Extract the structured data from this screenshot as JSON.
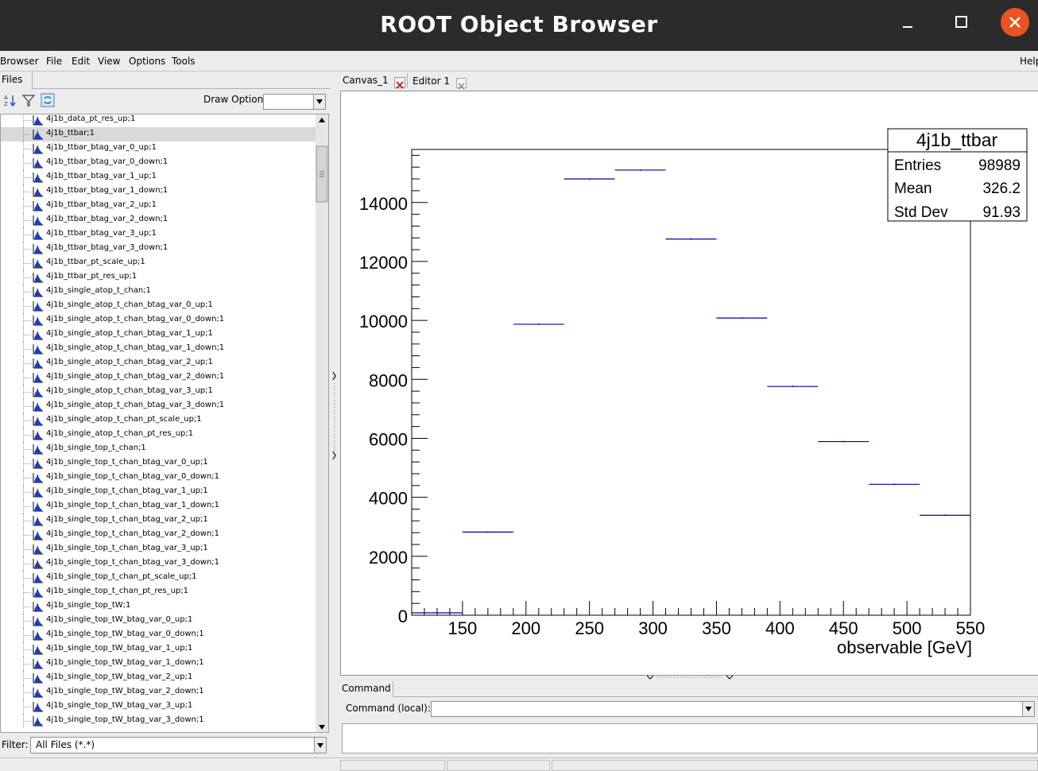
{
  "window": {
    "title": "ROOT Object Browser"
  },
  "menu": {
    "browser": "Browser",
    "file": "File",
    "edit": "Edit",
    "view": "View",
    "options": "Options",
    "tools": "Tools",
    "help": "Help"
  },
  "left": {
    "tab": "Files",
    "draw_option_label": "Draw Option:",
    "draw_option_value": "",
    "filter_label": "Filter:",
    "filter_value": "All Files (*.*)",
    "items": [
      "4j1b_data_pt_res_up;1",
      "4j1b_ttbar;1",
      "4j1b_ttbar_btag_var_0_up;1",
      "4j1b_ttbar_btag_var_0_down;1",
      "4j1b_ttbar_btag_var_1_up;1",
      "4j1b_ttbar_btag_var_1_down;1",
      "4j1b_ttbar_btag_var_2_up;1",
      "4j1b_ttbar_btag_var_2_down;1",
      "4j1b_ttbar_btag_var_3_up;1",
      "4j1b_ttbar_btag_var_3_down;1",
      "4j1b_ttbar_pt_scale_up;1",
      "4j1b_ttbar_pt_res_up;1",
      "4j1b_single_atop_t_chan;1",
      "4j1b_single_atop_t_chan_btag_var_0_up;1",
      "4j1b_single_atop_t_chan_btag_var_0_down;1",
      "4j1b_single_atop_t_chan_btag_var_1_up;1",
      "4j1b_single_atop_t_chan_btag_var_1_down;1",
      "4j1b_single_atop_t_chan_btag_var_2_up;1",
      "4j1b_single_atop_t_chan_btag_var_2_down;1",
      "4j1b_single_atop_t_chan_btag_var_3_up;1",
      "4j1b_single_atop_t_chan_btag_var_3_down;1",
      "4j1b_single_atop_t_chan_pt_scale_up;1",
      "4j1b_single_atop_t_chan_pt_res_up;1",
      "4j1b_single_top_t_chan;1",
      "4j1b_single_top_t_chan_btag_var_0_up;1",
      "4j1b_single_top_t_chan_btag_var_0_down;1",
      "4j1b_single_top_t_chan_btag_var_1_up;1",
      "4j1b_single_top_t_chan_btag_var_1_down;1",
      "4j1b_single_top_t_chan_btag_var_2_up;1",
      "4j1b_single_top_t_chan_btag_var_2_down;1",
      "4j1b_single_top_t_chan_btag_var_3_up;1",
      "4j1b_single_top_t_chan_btag_var_3_down;1",
      "4j1b_single_top_t_chan_pt_scale_up;1",
      "4j1b_single_top_t_chan_pt_res_up;1",
      "4j1b_single_top_tW;1",
      "4j1b_single_top_tW_btag_var_0_up;1",
      "4j1b_single_top_tW_btag_var_0_down;1",
      "4j1b_single_top_tW_btag_var_1_up;1",
      "4j1b_single_top_tW_btag_var_1_down;1",
      "4j1b_single_top_tW_btag_var_2_up;1",
      "4j1b_single_top_tW_btag_var_2_down;1",
      "4j1b_single_top_tW_btag_var_3_up;1",
      "4j1b_single_top_tW_btag_var_3_down;1"
    ],
    "selected_index": 1
  },
  "right": {
    "tabs": [
      "Canvas_1",
      "Editor 1"
    ],
    "command_tab": "Command",
    "command_label": "Command (local):",
    "command_value": ""
  },
  "stats": {
    "title": "4j1b_ttbar",
    "entries_label": "Entries",
    "entries": "98989",
    "mean_label": "Mean",
    "mean": "326.2",
    "std_label": "Std Dev",
    "std": "91.93"
  },
  "chart_data": {
    "type": "bar",
    "title": "",
    "xlabel": "observable [GeV]",
    "ylabel": "",
    "xlim": [
      110,
      550
    ],
    "ylim": [
      0,
      15800
    ],
    "x_ticks": [
      150,
      200,
      250,
      300,
      350,
      400,
      450,
      500,
      550
    ],
    "y_ticks": [
      0,
      2000,
      4000,
      6000,
      8000,
      10000,
      12000,
      14000
    ],
    "bin_edges": [
      110,
      150,
      190,
      230,
      270,
      310,
      350,
      390,
      430,
      470,
      510,
      550
    ],
    "values": [
      80,
      2820,
      9870,
      14800,
      15100,
      12760,
      10080,
      7760,
      5890,
      4440,
      3390
    ],
    "line_color": "#000099"
  }
}
